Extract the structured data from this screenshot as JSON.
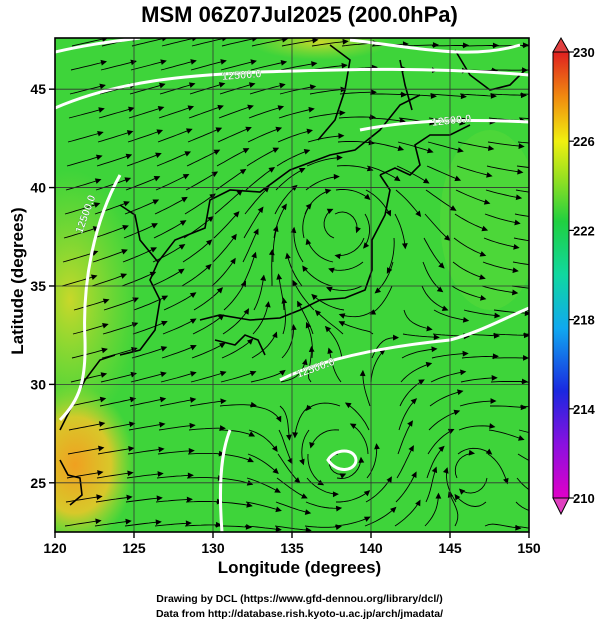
{
  "title": "MSM 06Z07Jul2025 (200.0hPa)",
  "xaxis": {
    "label": "Longitude (degrees)",
    "ticks": [
      "120",
      "125",
      "130",
      "135",
      "140",
      "145",
      "150"
    ],
    "range": [
      120,
      150
    ]
  },
  "yaxis": {
    "label": "Latitude  (degrees)",
    "ticks": [
      "25",
      "30",
      "35",
      "40",
      "45"
    ],
    "range": [
      22.5,
      47.6
    ]
  },
  "colorbar": {
    "ticks": [
      "210",
      "214",
      "218",
      "222",
      "226",
      "230"
    ],
    "range": [
      210,
      230
    ]
  },
  "contour_labels": [
    "12500.0",
    "12500.0",
    "12500.0",
    "12500.0"
  ],
  "credits": {
    "line1": "Drawing by DCL (https://www.gfd-dennou.org/library/dcl/)",
    "line2": "Data from http://database.rish.kyoto-u.ac.jp/arch/jmadata/"
  },
  "colors": {
    "field_main": "#3ed43a",
    "field_warm": "#f2a020",
    "contour": "#ffffff"
  }
}
